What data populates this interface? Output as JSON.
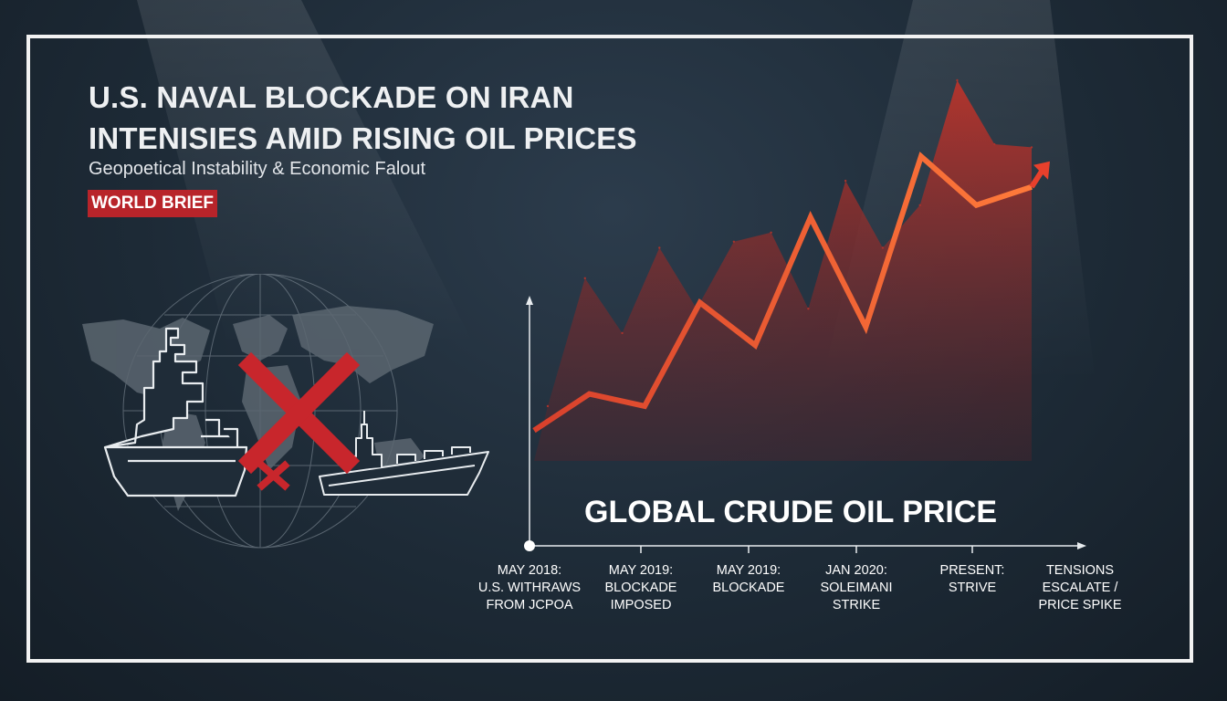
{
  "headline": {
    "line1": "U.S. NAVAL BLOCKADE ON IRAN",
    "line2": "INTENISIES AMID RISING OIL PRICES"
  },
  "subtitle": "Geopoetical Instability & Economic Falout",
  "badge": "WORLD BRIEF",
  "chart_data": {
    "type": "line",
    "title": "GLOBAL CRUDE OIL PRICE",
    "xlabel": "",
    "ylabel": "",
    "trend": [
      10,
      22,
      18,
      52,
      38,
      80,
      44,
      100,
      84,
      90
    ],
    "spikes": [
      18,
      60,
      42,
      70,
      50,
      72,
      75,
      50,
      92,
      70,
      84,
      125,
      104,
      103
    ],
    "colors": {
      "line": "#f05a3a",
      "area": "#a8322c",
      "arrow": "#e8402c"
    },
    "timeline": [
      {
        "lines": [
          "MAY 2018:",
          "U.S. WITHRAWS",
          "FROM JCPOA"
        ]
      },
      {
        "lines": [
          "MAY 2019:",
          "BLOCKADE",
          "IMPOSED"
        ]
      },
      {
        "lines": [
          "MAY 2019:",
          "BLOCKADE"
        ]
      },
      {
        "lines": [
          "JAN 2020:",
          "SOLEIMANI",
          "STRIKE"
        ]
      },
      {
        "lines": [
          "PRESENT:",
          "STRIVE"
        ]
      },
      {
        "lines": [
          "TENSIONS",
          "ESCALATE /",
          "PRICE SPIKE"
        ]
      }
    ]
  },
  "illustration": {
    "icons": [
      "world-map-icon",
      "globe-grid-icon",
      "warship-icon",
      "tanker-icon",
      "blockade-x-icon"
    ],
    "colors": {
      "x_mark": "#c8262c",
      "ship_outline": "#e8ecef",
      "map": "#5a6570"
    }
  }
}
